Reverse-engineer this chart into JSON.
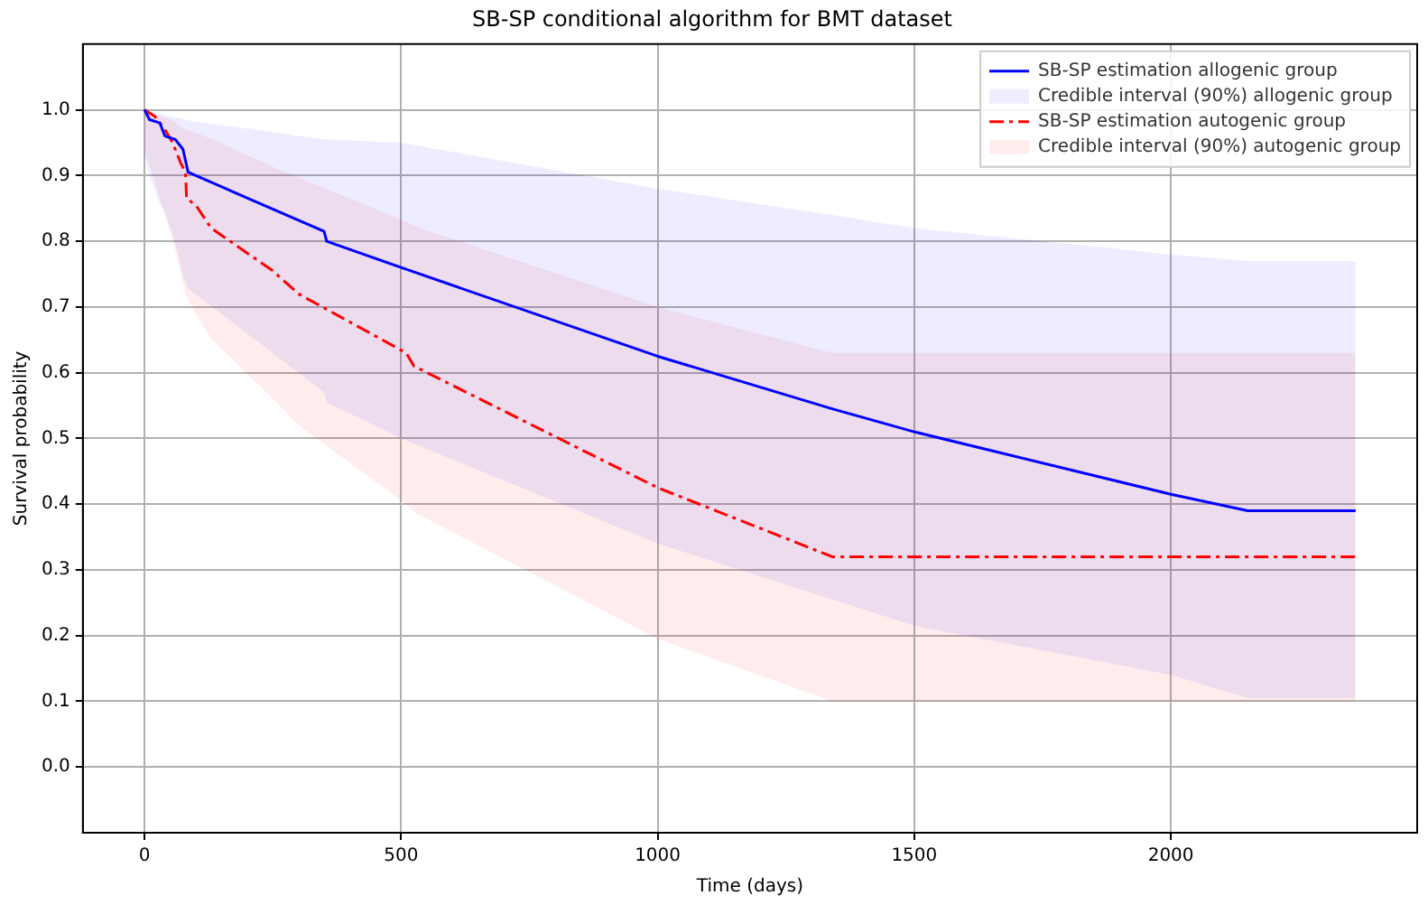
{
  "chart_data": {
    "type": "line",
    "title": "SB-SP conditional algorithm for BMT dataset",
    "xlabel": "Time (days)",
    "ylabel": "Survival probability",
    "xlim": [
      -120,
      2480
    ],
    "xticks": [
      0,
      500,
      1000,
      1500,
      2000
    ],
    "ylim": [
      -0.1,
      1.1
    ],
    "yticks": [
      {
        "value": 0,
        "label": "0.0"
      },
      0.1,
      0.2,
      0.3,
      0.4,
      0.5,
      0.6,
      0.7,
      0.8,
      0.9,
      {
        "value": 1,
        "label": "1.0"
      }
    ],
    "grid": true,
    "legend": "top right",
    "marker": "none",
    "series": [
      {
        "name": "SB-SP estimation allogenic group",
        "color": "#0000ff",
        "line_style": "solid",
        "x": [
          0,
          10,
          30,
          40,
          60,
          75,
          85,
          350,
          355,
          500,
          1000,
          1340,
          1500,
          2000,
          2150,
          2360
        ],
        "values": [
          1.0,
          0.985,
          0.98,
          0.96,
          0.955,
          0.94,
          0.905,
          0.815,
          0.8,
          0.76,
          0.625,
          0.545,
          0.51,
          0.415,
          0.39,
          0.39
        ],
        "upper": [
          1.0,
          0.997,
          0.993,
          0.992,
          0.988,
          0.986,
          0.984,
          0.955,
          0.955,
          0.95,
          0.88,
          0.84,
          0.82,
          0.78,
          0.77,
          0.77
        ],
        "lower": [
          0.93,
          0.9,
          0.857,
          0.843,
          0.797,
          0.747,
          0.728,
          0.57,
          0.555,
          0.5,
          0.34,
          0.255,
          0.215,
          0.14,
          0.105,
          0.105
        ]
      },
      {
        "name": "Credible interval (90%) allogenic group",
        "type": "area",
        "color": "#0000ff"
      },
      {
        "name": "SB-SP estimation autogenic group",
        "color": "#ff0000",
        "line_style": "dashed",
        "x": [
          0,
          20,
          40,
          55,
          70,
          80,
          82,
          100,
          130,
          250,
          300,
          510,
          525,
          1000,
          1340,
          2360
        ],
        "values": [
          1.0,
          0.99,
          0.97,
          0.95,
          0.92,
          0.905,
          0.865,
          0.855,
          0.82,
          0.755,
          0.72,
          0.63,
          0.61,
          0.425,
          0.32,
          0.32
        ],
        "upper": [
          1.0,
          0.994,
          0.988,
          0.983,
          0.975,
          0.97,
          0.97,
          0.965,
          0.956,
          0.913,
          0.897,
          0.83,
          0.823,
          0.7,
          0.63,
          0.63
        ],
        "lower": [
          0.94,
          0.89,
          0.84,
          0.803,
          0.753,
          0.72,
          0.717,
          0.69,
          0.652,
          0.56,
          0.52,
          0.4,
          0.388,
          0.195,
          0.1,
          0.1
        ]
      },
      {
        "name": "Credible interval (90%) autogenic group",
        "type": "area",
        "color": "#ff0000"
      }
    ]
  }
}
